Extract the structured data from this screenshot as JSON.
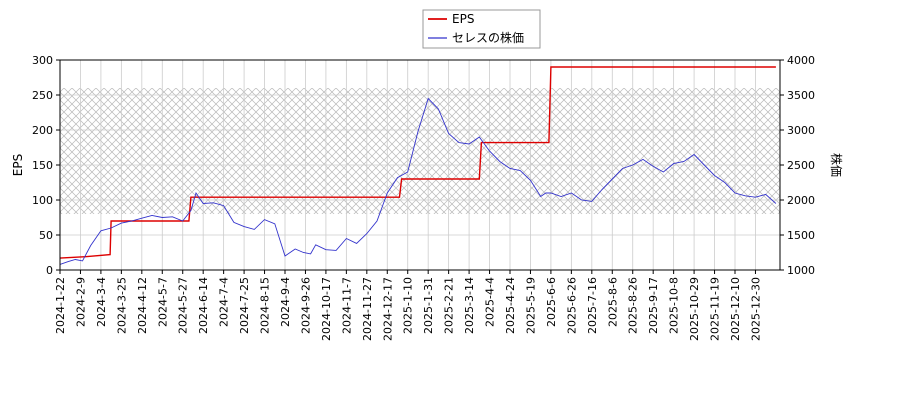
{
  "chart_data": {
    "type": "line",
    "title": "",
    "legend": {
      "placement": "top-center",
      "entries": [
        {
          "label": "EPS",
          "color": "#dd0000"
        },
        {
          "label": "セレスの株価",
          "color": "#3333cc"
        }
      ]
    },
    "x_axis": {
      "ticks": [
        "2024-1-22",
        "2024-2-9",
        "2024-3-4",
        "2024-3-25",
        "2024-4-12",
        "2024-5-7",
        "2024-5-27",
        "2024-6-14",
        "2024-7-4",
        "2024-7-25",
        "2024-8-15",
        "2024-9-4",
        "2024-9-26",
        "2024-10-17",
        "2024-11-7",
        "2024-11-27",
        "2024-12-17",
        "2025-1-10",
        "2025-1-31",
        "2025-2-21",
        "2025-3-14",
        "2025-4-4",
        "2025-4-24",
        "2025-5-19",
        "2025-6-6",
        "2025-6-26",
        "2025-7-16",
        "2025-8-6",
        "2025-8-26",
        "2025-9-17",
        "2025-10-8",
        "2025-10-29",
        "2025-11-19",
        "2025-12-10",
        "2025-12-30"
      ]
    },
    "y_left": {
      "label": "EPS",
      "range": [
        0,
        300
      ],
      "ticks": [
        0,
        50,
        100,
        150,
        200,
        250,
        300
      ]
    },
    "y_right": {
      "label": "株価",
      "range": [
        1000,
        4000
      ],
      "ticks": [
        1000,
        1500,
        2000,
        2500,
        3000,
        3500,
        4000
      ],
      "shaded_band": [
        1800,
        3600
      ]
    },
    "grid": true,
    "series": [
      {
        "name": "EPS",
        "axis": "left",
        "color": "#dd0000",
        "x": [
          0,
          2.5,
          4.9,
          5.0,
          12.6,
          12.8,
          20.0,
          33.2,
          33.4,
          41.0,
          41.2,
          47.8,
          48.0,
          53.0,
          60.8,
          70.0
        ],
        "y": [
          17,
          19,
          22,
          70,
          70,
          104,
          104,
          104,
          130,
          130,
          182,
          182,
          290,
          290,
          290,
          290
        ]
      },
      {
        "name": "セレスの株価",
        "axis": "right",
        "color": "#3333cc",
        "x": [
          0,
          0.8,
          1.5,
          2.2,
          3.0,
          4.0,
          5.0,
          6.0,
          7.0,
          8.0,
          9.0,
          10.0,
          11.0,
          12.0,
          12.8,
          13.3,
          14.0,
          15.0,
          16.0,
          17.0,
          18.0,
          19.0,
          20.0,
          21.0,
          22.0,
          23.0,
          23.8,
          24.5,
          25.0,
          26.0,
          27.0,
          28.0,
          29.0,
          30.0,
          31.0,
          32.0,
          33.0,
          34.0,
          35.0,
          36.0,
          37.0,
          38.0,
          39.0,
          40.0,
          41.0,
          42.0,
          43.0,
          44.0,
          45.0,
          46.0,
          47.0,
          47.5,
          48.0,
          49.0,
          50.0,
          51.0,
          52.0,
          53.0,
          54.0,
          55.0,
          56.0,
          57.0,
          58.0,
          59.0,
          60.0,
          61.0,
          62.0,
          63.0,
          64.0,
          65.0,
          66.0,
          67.0,
          68.0,
          69.0,
          70.0
        ],
        "y": [
          1080,
          1120,
          1150,
          1130,
          1350,
          1560,
          1600,
          1670,
          1700,
          1740,
          1780,
          1750,
          1760,
          1700,
          1850,
          2100,
          1950,
          1960,
          1920,
          1680,
          1620,
          1580,
          1720,
          1660,
          1200,
          1300,
          1250,
          1230,
          1360,
          1290,
          1280,
          1450,
          1380,
          1520,
          1700,
          2100,
          2320,
          2400,
          2980,
          3450,
          3300,
          2950,
          2820,
          2800,
          2900,
          2700,
          2550,
          2450,
          2420,
          2280,
          2050,
          2100,
          2100,
          2050,
          2100,
          2000,
          1980,
          2150,
          2300,
          2450,
          2500,
          2580,
          2480,
          2400,
          2520,
          2550,
          2650,
          2500,
          2350,
          2250,
          2100,
          2060,
          2040,
          2080,
          1950
        ]
      }
    ]
  }
}
